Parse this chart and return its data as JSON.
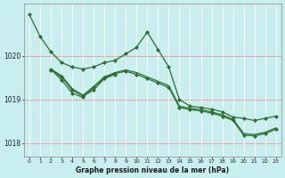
{
  "background_color": "#c8eef0",
  "grid_color_h": "#f0a0a0",
  "grid_color_v": "#ffffff",
  "line_color": "#2d6e2d",
  "xlabel": "Graphe pression niveau de la mer (hPa)",
  "xlim": [
    -0.5,
    23.5
  ],
  "ylim": [
    1017.7,
    1021.2
  ],
  "yticks": [
    1018,
    1019,
    1020
  ],
  "xticks": [
    0,
    1,
    2,
    3,
    4,
    5,
    6,
    7,
    8,
    9,
    10,
    11,
    12,
    13,
    14,
    15,
    16,
    17,
    18,
    19,
    20,
    21,
    22,
    23
  ],
  "series": [
    {
      "x": [
        0,
        1,
        2,
        3,
        4,
        5,
        6,
        7,
        8,
        9,
        10,
        11,
        12,
        13,
        14,
        15,
        16,
        17,
        18,
        19,
        20,
        21,
        22,
        23
      ],
      "y": [
        1020.95,
        1020.45,
        1020.1,
        1019.85,
        1019.75,
        1019.7,
        1019.75,
        1019.85,
        1019.9,
        1020.05,
        1020.2,
        1020.55,
        1020.15,
        1019.75,
        1019.0,
        1018.85,
        1018.82,
        1018.78,
        1018.72,
        1018.6,
        1018.57,
        1018.52,
        1018.57,
        1018.62
      ],
      "marker": true,
      "linewidth": 0.9
    },
    {
      "x": [
        2,
        3,
        4,
        5,
        6,
        7,
        8,
        9,
        10,
        11,
        12,
        13,
        14,
        15,
        16,
        17,
        18,
        19,
        20,
        21,
        22,
        23
      ],
      "y": [
        1019.7,
        1019.55,
        1019.25,
        1019.1,
        1019.3,
        1019.52,
        1019.62,
        1019.68,
        1019.62,
        1019.52,
        1019.42,
        1019.32,
        1018.85,
        1018.8,
        1018.77,
        1018.72,
        1018.65,
        1018.55,
        1018.22,
        1018.2,
        1018.25,
        1018.35
      ],
      "marker": false,
      "linewidth": 0.9
    },
    {
      "x": [
        2,
        3,
        4,
        5,
        6,
        7,
        8,
        9,
        10,
        11,
        12,
        13,
        14,
        15,
        16,
        17,
        18,
        19,
        20,
        21,
        22,
        23
      ],
      "y": [
        1019.7,
        1019.45,
        1019.15,
        1019.05,
        1019.28,
        1019.5,
        1019.6,
        1019.65,
        1019.58,
        1019.48,
        1019.38,
        1019.28,
        1018.82,
        1018.77,
        1018.74,
        1018.69,
        1018.62,
        1018.52,
        1018.18,
        1018.17,
        1018.22,
        1018.32
      ],
      "marker": true,
      "linewidth": 0.9
    },
    {
      "x": [
        2,
        3,
        4,
        5,
        6,
        7,
        8
      ],
      "y": [
        1019.68,
        1019.52,
        1019.22,
        1019.08,
        1019.22,
        1019.48,
        1019.58
      ],
      "marker": true,
      "linewidth": 0.9
    }
  ]
}
